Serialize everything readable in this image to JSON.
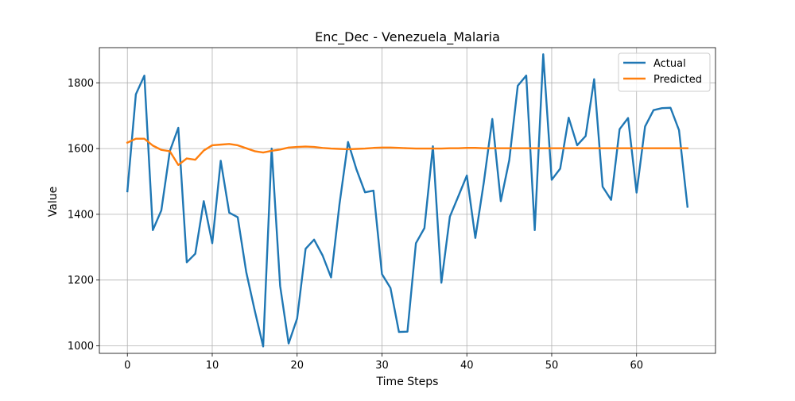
{
  "chart_data": {
    "type": "line",
    "title": "Enc_Dec - Venezuela_Malaria",
    "xlabel": "Time Steps",
    "ylabel": "Value",
    "xlim": [
      -3.3,
      69.3
    ],
    "ylim": [
      977,
      1907
    ],
    "xticks": [
      0,
      10,
      20,
      30,
      40,
      50,
      60
    ],
    "xtick_labels": [
      "0",
      "10",
      "20",
      "30",
      "40",
      "50",
      "60"
    ],
    "yticks": [
      1000,
      1200,
      1400,
      1600,
      1800
    ],
    "ytick_labels": [
      "1000",
      "1200",
      "1400",
      "1600",
      "1800"
    ],
    "grid": true,
    "legend_position": "top-right",
    "x": [
      0,
      1,
      2,
      3,
      4,
      5,
      6,
      7,
      8,
      9,
      10,
      11,
      12,
      13,
      14,
      15,
      16,
      17,
      18,
      19,
      20,
      21,
      22,
      23,
      24,
      25,
      26,
      27,
      28,
      29,
      30,
      31,
      32,
      33,
      34,
      35,
      36,
      37,
      38,
      39,
      40,
      41,
      42,
      43,
      44,
      45,
      46,
      47,
      48,
      49,
      50,
      51,
      52,
      53,
      54,
      55,
      56,
      57,
      58,
      59,
      60,
      61,
      62,
      63,
      64,
      65,
      66
    ],
    "series": [
      {
        "name": "Actual",
        "color": "#1f77b4",
        "values": [
          1470,
          1765,
          1822,
          1352,
          1412,
          1592,
          1663,
          1254,
          1280,
          1440,
          1312,
          1563,
          1405,
          1391,
          1225,
          1108,
          998,
          1600,
          1182,
          1007,
          1083,
          1295,
          1323,
          1275,
          1208,
          1432,
          1620,
          1536,
          1467,
          1472,
          1218,
          1176,
          1042,
          1043,
          1312,
          1358,
          1607,
          1192,
          1393,
          1455,
          1518,
          1328,
          1497,
          1690,
          1440,
          1565,
          1791,
          1822,
          1352,
          1887,
          1505,
          1539,
          1694,
          1610,
          1638,
          1811,
          1484,
          1444,
          1659,
          1693,
          1466,
          1667,
          1717,
          1723,
          1724,
          1656,
          1423
        ]
      },
      {
        "name": "Predicted",
        "color": "#ff7f0e",
        "values": [
          1618,
          1630,
          1630,
          1609,
          1596,
          1592,
          1550,
          1570,
          1566,
          1594,
          1610,
          1612,
          1614,
          1610,
          1601,
          1592,
          1588,
          1593,
          1597,
          1603,
          1605,
          1606,
          1605,
          1602,
          1600,
          1599,
          1598,
          1599,
          1600,
          1602,
          1603,
          1603,
          1602,
          1601,
          1600,
          1600,
          1600,
          1600,
          1601,
          1601,
          1602,
          1602,
          1601,
          1601,
          1601,
          1601,
          1601,
          1601,
          1601,
          1601,
          1601,
          1601,
          1601,
          1601,
          1601,
          1601,
          1601,
          1601,
          1601,
          1601,
          1601,
          1601,
          1601,
          1601,
          1601,
          1601,
          1601
        ]
      }
    ]
  }
}
